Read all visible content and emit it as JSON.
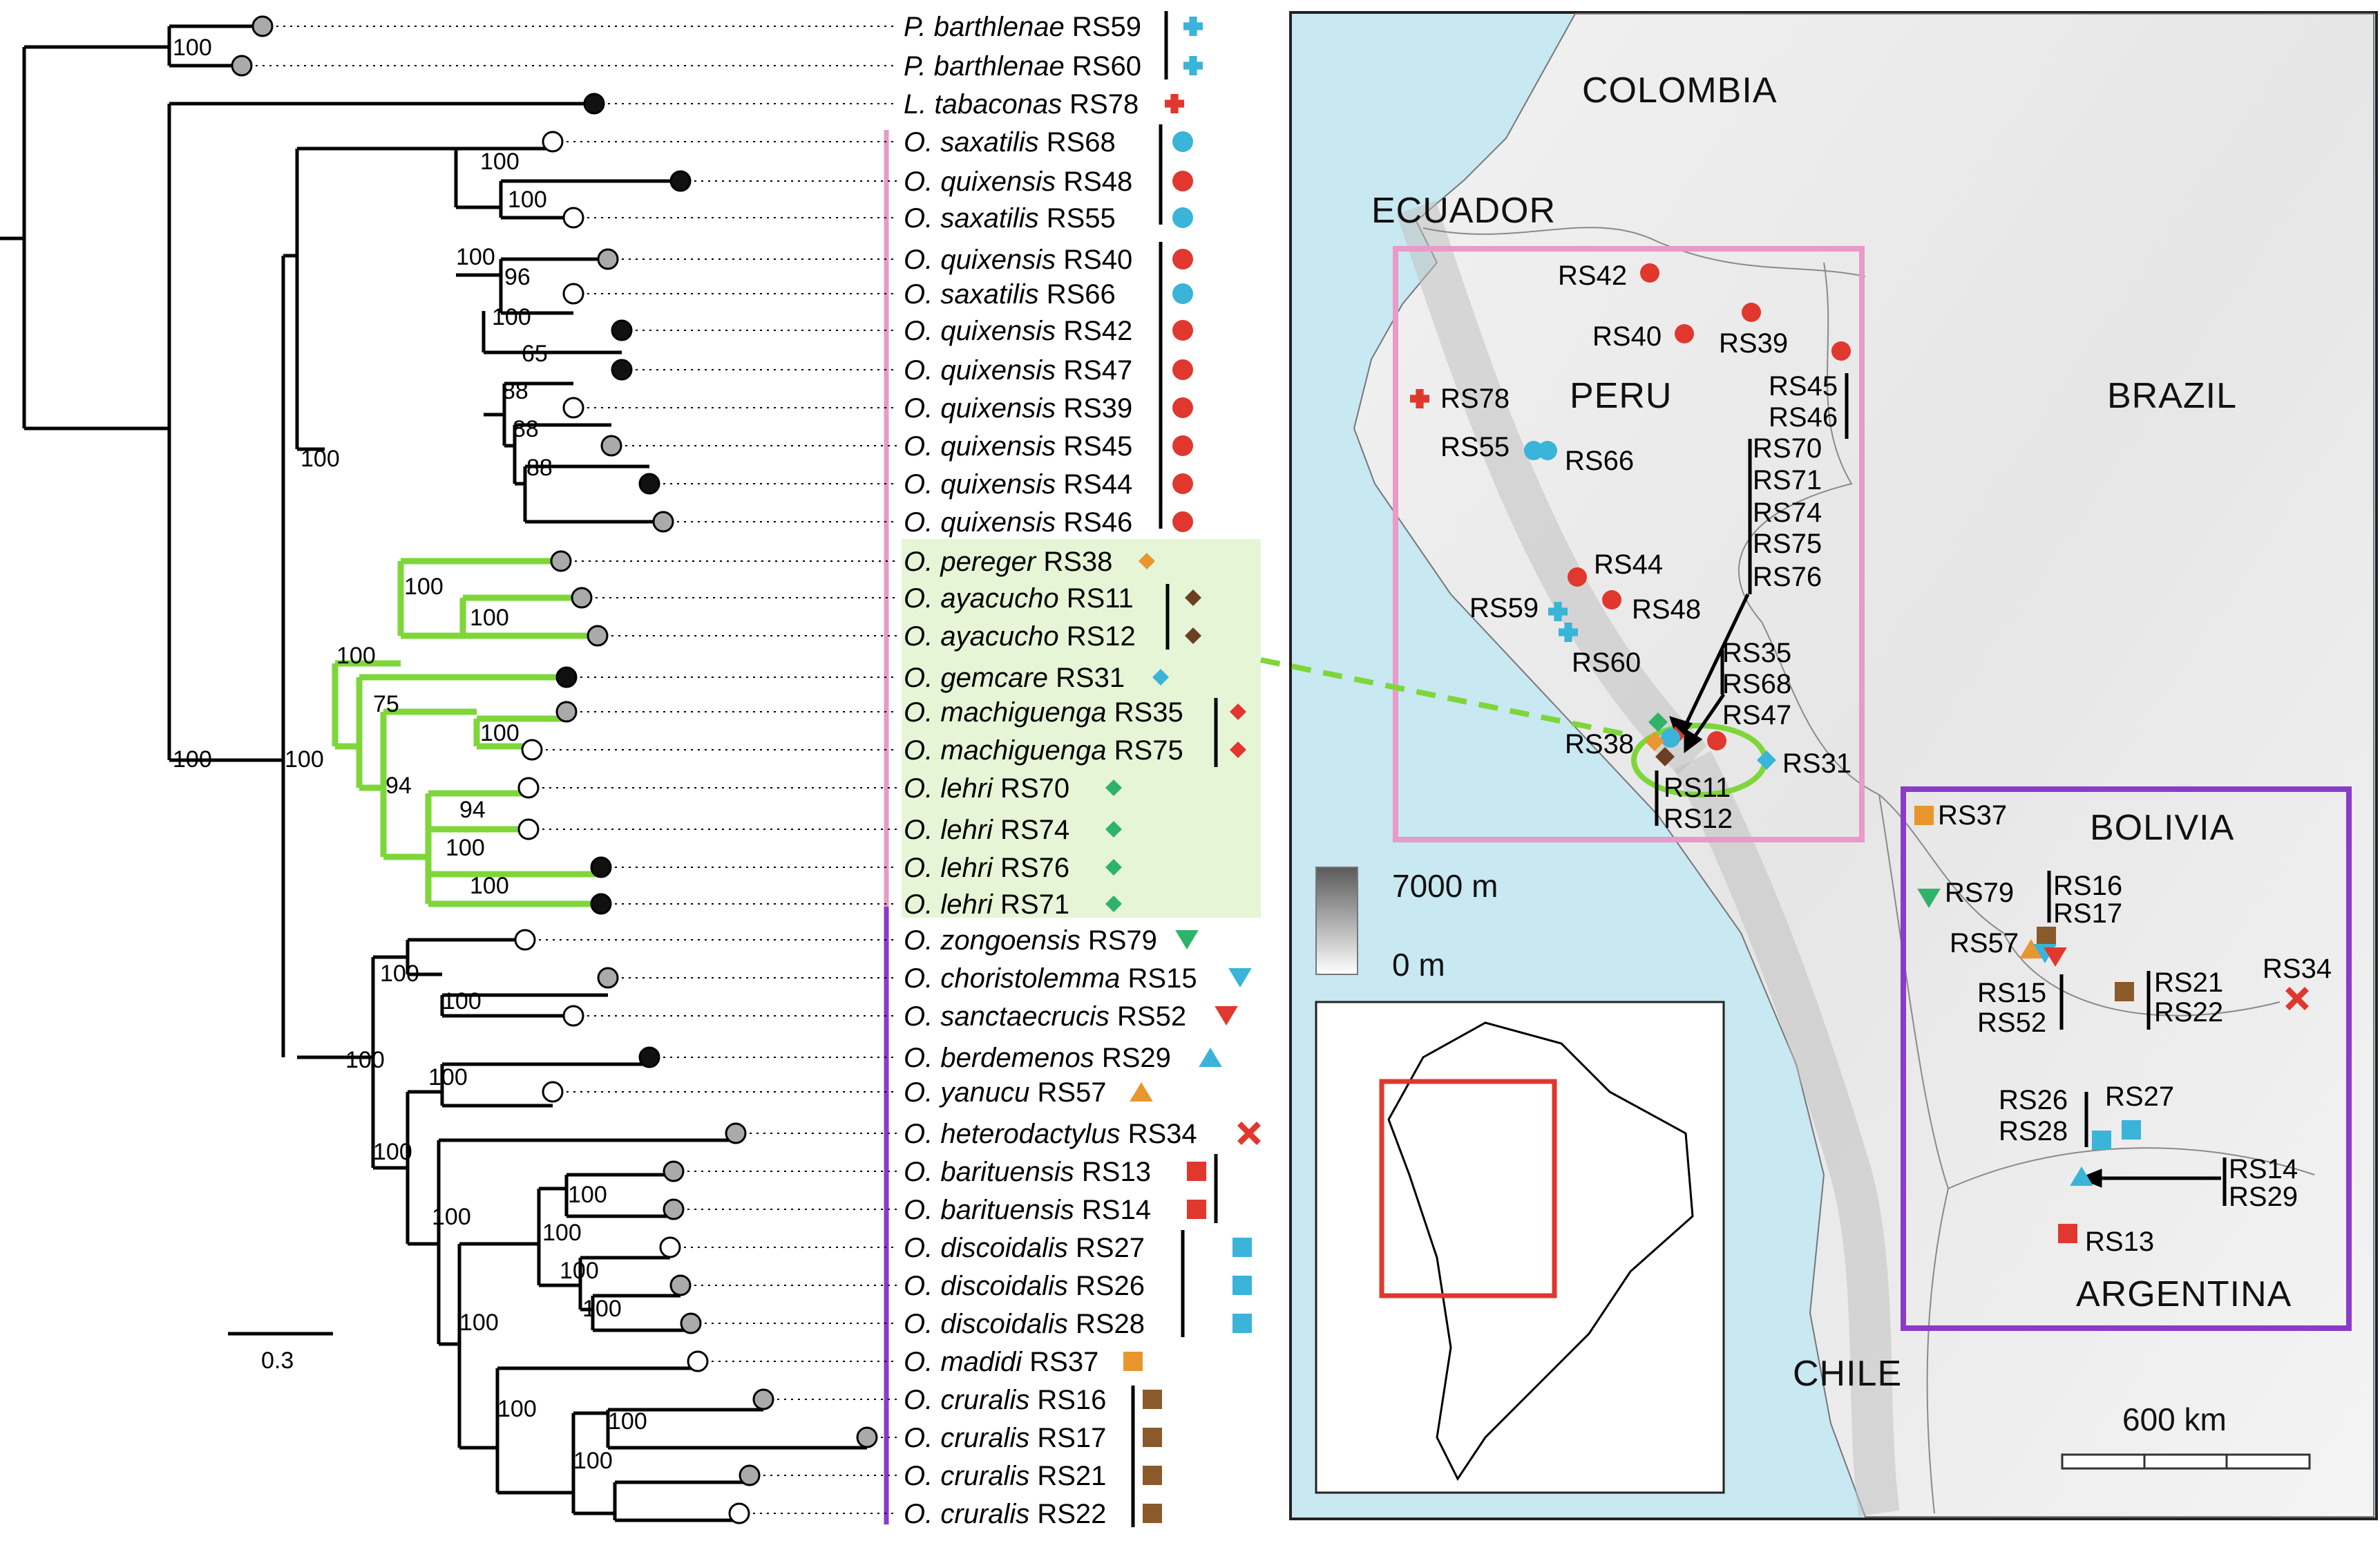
{
  "tips": [
    {
      "species": "P. barthlenae",
      "code": "RS59",
      "symbol": "cross",
      "color": "#3ab4d8"
    },
    {
      "species": "P. barthlenae",
      "code": "RS60",
      "symbol": "cross",
      "color": "#3ab4d8"
    },
    {
      "species": "L. tabaconas",
      "code": "RS78",
      "symbol": "cross",
      "color": "#e0382e"
    },
    {
      "species": "O. saxatilis",
      "code": "RS68",
      "symbol": "circle",
      "color": "#3ab4d8"
    },
    {
      "species": "O. quixensis",
      "code": "RS48",
      "symbol": "circle",
      "color": "#e0382e"
    },
    {
      "species": "O. saxatilis",
      "code": "RS55",
      "symbol": "circle",
      "color": "#3ab4d8"
    },
    {
      "species": "O. quixensis",
      "code": "RS40",
      "symbol": "circle",
      "color": "#e0382e"
    },
    {
      "species": "O. saxatilis",
      "code": "RS66",
      "symbol": "circle",
      "color": "#3ab4d8"
    },
    {
      "species": "O. quixensis",
      "code": "RS42",
      "symbol": "circle",
      "color": "#e0382e"
    },
    {
      "species": "O. quixensis",
      "code": "RS47",
      "symbol": "circle",
      "color": "#e0382e"
    },
    {
      "species": "O. quixensis",
      "code": "RS39",
      "symbol": "circle",
      "color": "#e0382e"
    },
    {
      "species": "O. quixensis",
      "code": "RS45",
      "symbol": "circle",
      "color": "#e0382e"
    },
    {
      "species": "O. quixensis",
      "code": "RS44",
      "symbol": "circle",
      "color": "#e0382e"
    },
    {
      "species": "O. quixensis",
      "code": "RS46",
      "symbol": "circle",
      "color": "#e0382e"
    },
    {
      "species": "O. pereger",
      "code": "RS38",
      "symbol": "diamond",
      "color": "#e8962e"
    },
    {
      "species": "O. ayacucho",
      "code": "RS11",
      "symbol": "diamond",
      "color": "#6b3f22"
    },
    {
      "species": "O. ayacucho",
      "code": "RS12",
      "symbol": "diamond",
      "color": "#6b3f22"
    },
    {
      "species": "O. gemcare",
      "code": "RS31",
      "symbol": "diamond",
      "color": "#3ab4d8"
    },
    {
      "species": "O. machiguenga",
      "code": "RS35",
      "symbol": "diamond",
      "color": "#e0382e"
    },
    {
      "species": "O. machiguenga",
      "code": "RS75",
      "symbol": "diamond",
      "color": "#e0382e"
    },
    {
      "species": "O. lehri",
      "code": "RS70",
      "symbol": "diamond",
      "color": "#2fb36a"
    },
    {
      "species": "O. lehri",
      "code": "RS74",
      "symbol": "diamond",
      "color": "#2fb36a"
    },
    {
      "species": "O. lehri",
      "code": "RS76",
      "symbol": "diamond",
      "color": "#2fb36a"
    },
    {
      "species": "O. lehri",
      "code": "RS71",
      "symbol": "diamond",
      "color": "#2fb36a"
    },
    {
      "species": "O. zongoensis",
      "code": "RS79",
      "symbol": "tri-down",
      "color": "#2fb36a"
    },
    {
      "species": "O. choristolemma",
      "code": "RS15",
      "symbol": "tri-down",
      "color": "#3ab4d8"
    },
    {
      "species": "O. sanctaecrucis",
      "code": "RS52",
      "symbol": "tri-down",
      "color": "#e0382e"
    },
    {
      "species": "O. berdemenos",
      "code": "RS29",
      "symbol": "tri-up",
      "color": "#3ab4d8"
    },
    {
      "species": "O. yanucu",
      "code": "RS57",
      "symbol": "tri-up",
      "color": "#e8962e"
    },
    {
      "species": "O. heterodactylus",
      "code": "RS34",
      "symbol": "x",
      "color": "#e0382e"
    },
    {
      "species": "O. barituensis",
      "code": "RS13",
      "symbol": "square",
      "color": "#e0382e"
    },
    {
      "species": "O. barituensis",
      "code": "RS14",
      "symbol": "square",
      "color": "#e0382e"
    },
    {
      "species": "O. discoidalis",
      "code": "RS27",
      "symbol": "square",
      "color": "#3ab4d8"
    },
    {
      "species": "O. discoidalis",
      "code": "RS26",
      "symbol": "square",
      "color": "#3ab4d8"
    },
    {
      "species": "O. discoidalis",
      "code": "RS28",
      "symbol": "square",
      "color": "#3ab4d8"
    },
    {
      "species": "O. madidi",
      "code": "RS37",
      "symbol": "square",
      "color": "#e8962e"
    },
    {
      "species": "O. cruralis",
      "code": "RS16",
      "symbol": "square",
      "color": "#8a5a2b"
    },
    {
      "species": "O. cruralis",
      "code": "RS17",
      "symbol": "square",
      "color": "#8a5a2b"
    },
    {
      "species": "O. cruralis",
      "code": "RS21",
      "symbol": "square",
      "color": "#8a5a2b"
    },
    {
      "species": "O. cruralis",
      "code": "RS22",
      "symbol": "square",
      "color": "#8a5a2b"
    }
  ],
  "bootstrap": [
    "100",
    "100",
    "100",
    "96",
    "100",
    "100",
    "65",
    "88",
    "88",
    "88",
    "100",
    "100",
    "100",
    "100",
    "100",
    "100",
    "75",
    "94",
    "100",
    "94",
    "100",
    "100",
    "100",
    "100",
    "100",
    "100",
    "100",
    "100",
    "100",
    "100",
    "100",
    "100",
    "100",
    "100",
    "100",
    "100"
  ],
  "scale_bar": {
    "label": "0.3"
  },
  "map": {
    "countries": {
      "colombia": "COLOMBIA",
      "ecuador": "ECUADOR",
      "peru": "PERU",
      "brazil": "BRAZIL",
      "bolivia": "BOLIVIA",
      "argentina": "ARGENTINA",
      "chile": "CHILE"
    },
    "elevation_legend": {
      "max": "7000 m",
      "min": "0 m"
    },
    "distance_scale": "600 km",
    "site_labels": [
      "RS42",
      "RS40",
      "RS39",
      "RS45",
      "RS46",
      "RS78",
      "RS55",
      "RS66",
      "RS70",
      "RS71",
      "RS74",
      "RS75",
      "RS76",
      "RS44",
      "RS48",
      "RS59",
      "RS60",
      "RS35",
      "RS68",
      "RS47",
      "RS38",
      "RS31",
      "RS11",
      "RS12",
      "RS37",
      "RS79",
      "RS16",
      "RS17",
      "RS57",
      "RS15",
      "RS52",
      "RS21",
      "RS22",
      "RS34",
      "RS26",
      "RS28",
      "RS27",
      "RS14",
      "RS29",
      "RS13"
    ]
  },
  "colors": {
    "peru_box": "#e89ac8",
    "bolivia_box": "#8a3bc9",
    "clade_green": "#7ed63a",
    "inset_box": "#e0382e",
    "water": "#c8e8f2"
  }
}
